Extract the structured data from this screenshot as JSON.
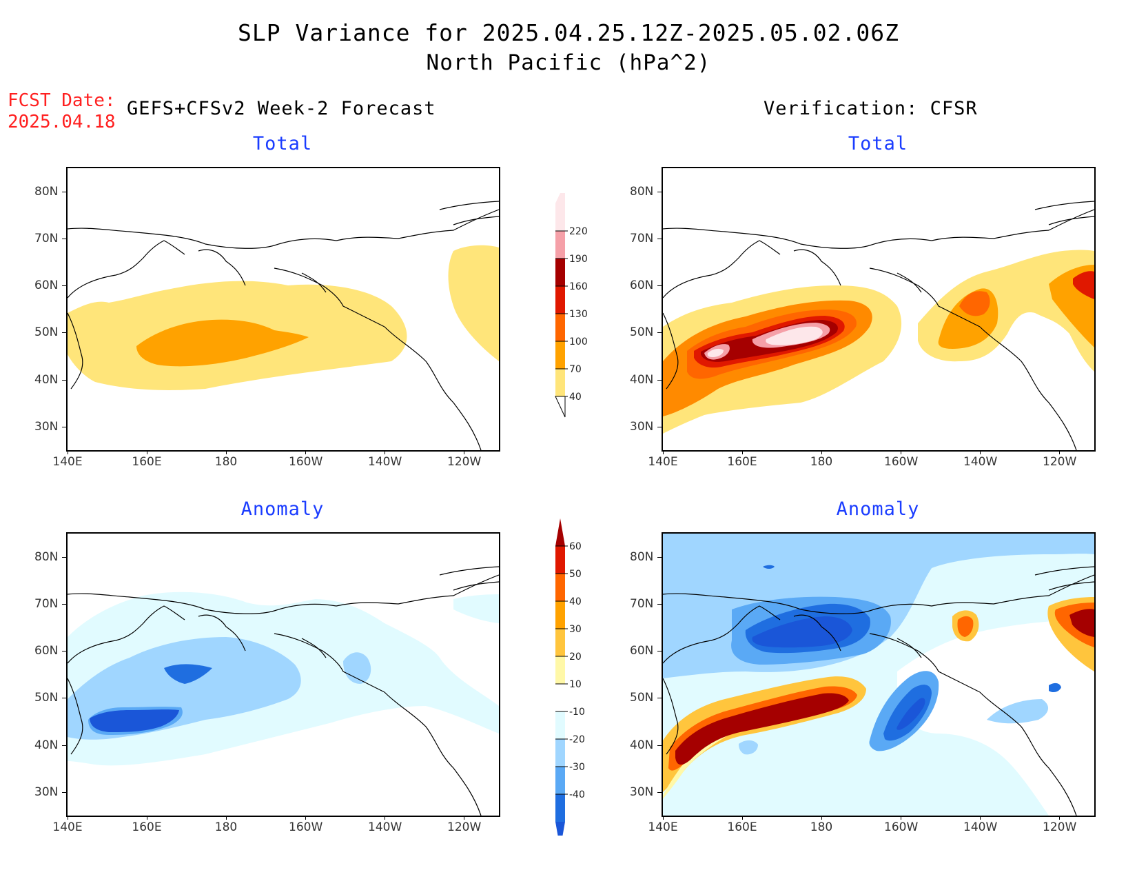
{
  "header": {
    "title": "SLP Variance for 2025.04.25.12Z-2025.05.02.06Z",
    "subtitle": "North Pacific (hPa^2)",
    "fcst_label": "FCST Date:",
    "fcst_date": "2025.04.18",
    "left_heading": "GEFS+CFSv2 Week-2 Forecast",
    "right_heading": "Verification: CFSR"
  },
  "panels": {
    "fc_total": {
      "title": "Total"
    },
    "vf_total": {
      "title": "Total"
    },
    "fc_anom": {
      "title": "Anomaly"
    },
    "vf_anom": {
      "title": "Anomaly"
    }
  },
  "axes": {
    "lat_labels": [
      "80N",
      "70N",
      "60N",
      "50N",
      "40N",
      "30N"
    ],
    "lon_labels": [
      "140E",
      "160E",
      "180",
      "160W",
      "140W",
      "120W"
    ]
  },
  "colorbars": {
    "total": {
      "levels": [
        "40",
        "70",
        "100",
        "130",
        "160",
        "190",
        "220"
      ],
      "colors": [
        "#ffe57a",
        "#ffa200",
        "#ff6600",
        "#e01800",
        "#a50000",
        "#f5a0a8",
        "#fde7ea"
      ]
    },
    "anomaly": {
      "levels": [
        "60",
        "50",
        "40",
        "30",
        "20",
        "10",
        "-10",
        "-20",
        "-30",
        "-40"
      ],
      "colors": [
        "#a50000",
        "#e01800",
        "#ff6600",
        "#ffa200",
        "#ffc53d",
        "#fff8a8",
        "#ffffff",
        "#e1fbff",
        "#a0d6ff",
        "#5aa9f5",
        "#1f6ee0",
        "#1a56d8"
      ]
    }
  }
}
